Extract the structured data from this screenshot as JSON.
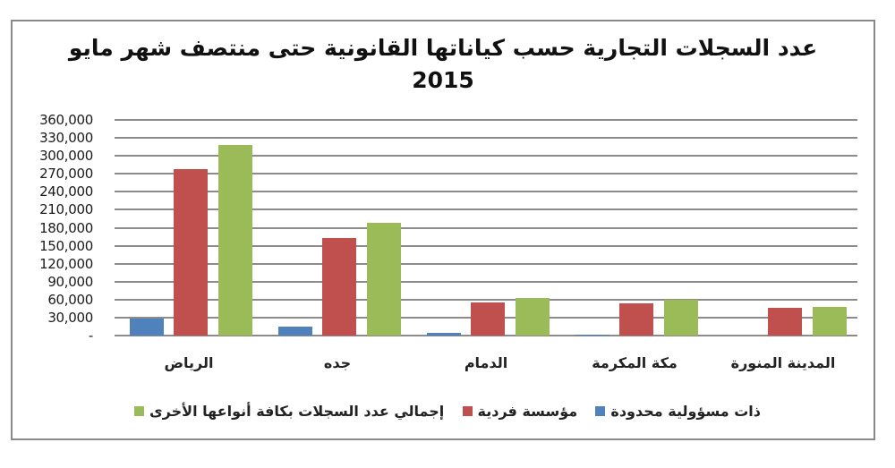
{
  "chart_data": {
    "type": "bar",
    "title": "عدد السجلات التجارية حسب كياناتها القانونية  حتى منتصف شهر مايو",
    "subtitle": "2015",
    "xlabel": "",
    "ylabel": "",
    "ylim": [
      0,
      360000
    ],
    "yticks": [
      "-",
      "30,000",
      "60,000",
      "90,000",
      "120,000",
      "150,000",
      "180,000",
      "210,000",
      "240,000",
      "270,000",
      "300,000",
      "330,000",
      "360,000"
    ],
    "grid": true,
    "legend_position": "bottom",
    "categories": [
      "الرياض",
      "جده",
      "الدمام",
      "مكة المكرمة",
      "المدينة المنورة"
    ],
    "series": [
      {
        "name": "ذات مسؤولية محدودة",
        "color": "#4f81bd",
        "values": [
          28000,
          15000,
          4500,
          1500,
          0
        ]
      },
      {
        "name": "مؤسسة فردية",
        "color": "#c0504d",
        "values": [
          277500,
          163500,
          55500,
          54000,
          46500
        ]
      },
      {
        "name": "إجمالي عدد السجلات بكافة أنواعها الأخرى",
        "color": "#9bbb59",
        "values": [
          318000,
          187500,
          63000,
          60000,
          48000
        ]
      }
    ]
  }
}
